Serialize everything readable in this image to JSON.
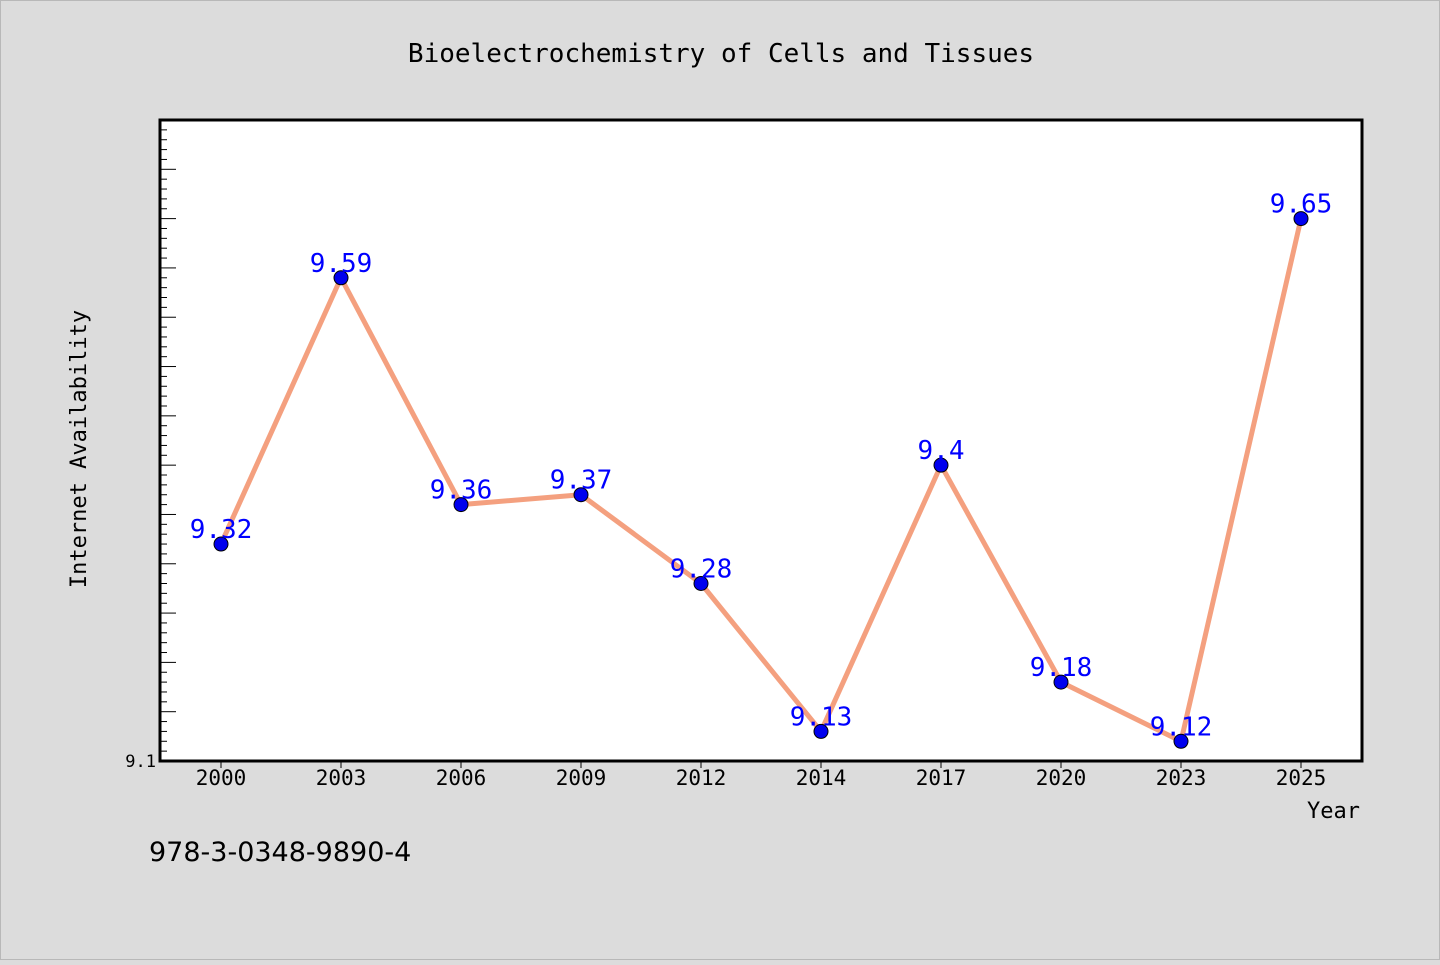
{
  "chart_data": {
    "type": "line",
    "title": "Bioelectrochemistry of Cells and Tissues",
    "xlabel": "Year",
    "ylabel": "Internet Availability",
    "categories": [
      "2000",
      "2003",
      "2006",
      "2009",
      "2012",
      "2014",
      "2017",
      "2020",
      "2023",
      "2025"
    ],
    "series": [
      {
        "values": [
          9.32,
          9.59,
          9.36,
          9.37,
          9.28,
          9.13,
          9.4,
          9.18,
          9.12,
          9.65
        ]
      }
    ],
    "data_labels": [
      "9.32",
      "9.59",
      "9.36",
      "9.37",
      "9.28",
      "9.13",
      "9.4",
      "9.18",
      "9.12",
      "9.65"
    ],
    "ytick_labels": [
      "9.1"
    ],
    "ylim": [
      9.1,
      9.75
    ],
    "grid": false,
    "colors": {
      "line": "#f4a07f",
      "marker": "#0000ee",
      "label": "#0000ff",
      "plot_bg": "#ffffff",
      "figure_bg": "#dcdcdc"
    }
  },
  "footer": {
    "isbn": "978-3-0348-9890-4"
  }
}
